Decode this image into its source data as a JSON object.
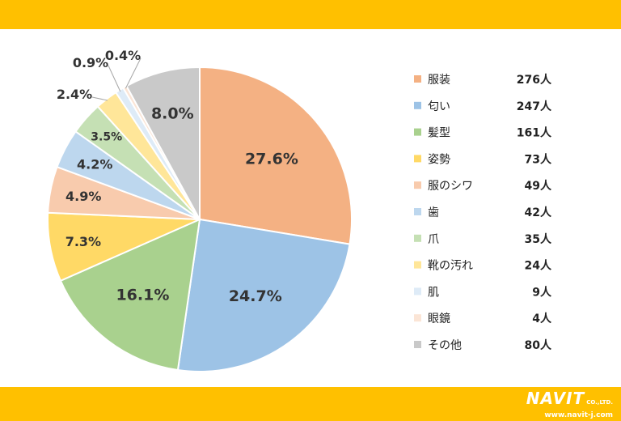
{
  "chart_data": {
    "type": "pie",
    "categories": [
      "服装",
      "匂い",
      "髪型",
      "姿勢",
      "服のシワ",
      "歯",
      "爪",
      "靴の汚れ",
      "肌",
      "眼鏡",
      "その他"
    ],
    "values": [
      276,
      247,
      161,
      73,
      49,
      42,
      35,
      24,
      9,
      4,
      80
    ],
    "value_labels": [
      "276人",
      "247人",
      "161人",
      "73人",
      "49人",
      "42人",
      "35人",
      "24人",
      "9人",
      "4人",
      "80人"
    ],
    "percent_labels": [
      "27.6%",
      "24.7%",
      "16.1%",
      "7.3%",
      "4.9%",
      "4.2%",
      "3.5%",
      "2.4%",
      "0.9%",
      "0.4%",
      "8.0%"
    ],
    "colors": [
      "#F4B183",
      "#9DC3E6",
      "#A9D18E",
      "#FFD966",
      "#F8CBAD",
      "#BDD7EE",
      "#C5E0B4",
      "#FFE699",
      "#DEEBF7",
      "#FBE5D6",
      "#C9C9C9"
    ],
    "legend_position": "right"
  },
  "brand": {
    "name": "NAVIT",
    "suffix": "CO.,LTD.",
    "url": "www.navit-j.com"
  }
}
